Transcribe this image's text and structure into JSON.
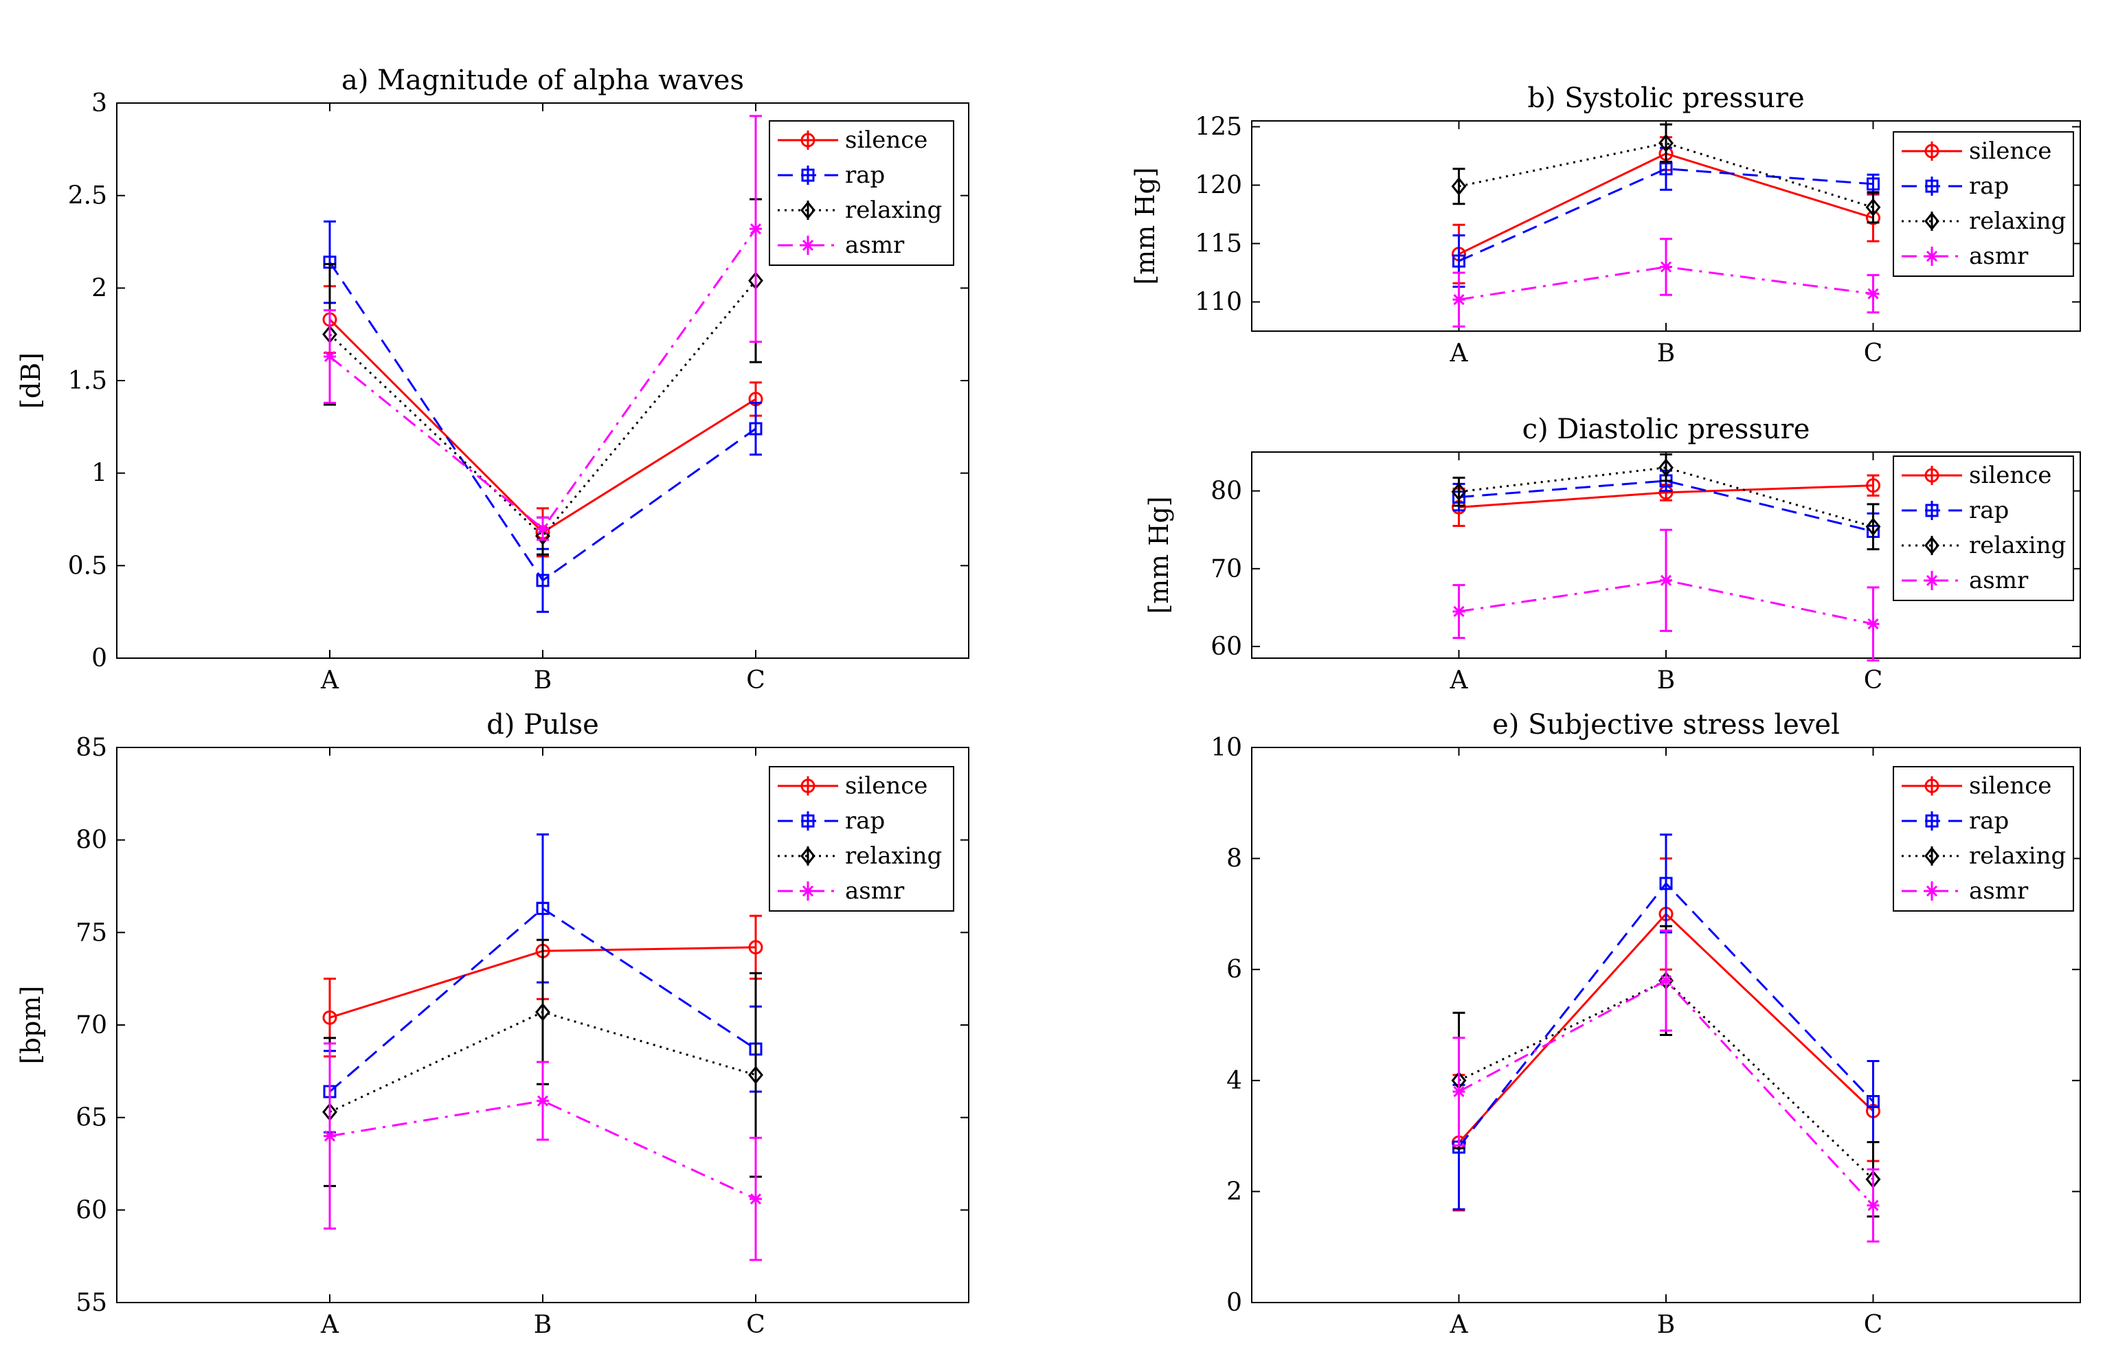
{
  "colors": {
    "silence": "#ff0000",
    "rap": "#0000ff",
    "relaxing": "#000000",
    "asmr": "#ff00ff"
  },
  "chart_data": [
    {
      "id": "alpha",
      "type": "line",
      "title": "a) Magnitude of alpha waves",
      "xlabel": "",
      "ylabel": "[dB]",
      "categories": [
        "A",
        "B",
        "C"
      ],
      "ylim": [
        0,
        3
      ],
      "yticks": [
        0,
        0.5,
        1,
        1.5,
        2,
        2.5,
        3
      ],
      "ytick_labels": [
        "0",
        "0.5",
        "1",
        "1.5",
        "2",
        "2.5",
        "3"
      ],
      "legend_position": "top-right",
      "series": [
        {
          "name": "silence",
          "values": [
            1.83,
            0.68,
            1.4
          ],
          "errors": [
            0.18,
            0.13,
            0.09
          ]
        },
        {
          "name": "rap",
          "values": [
            2.14,
            0.42,
            1.24
          ],
          "errors": [
            0.22,
            0.17,
            0.14
          ]
        },
        {
          "name": "relaxing",
          "values": [
            1.75,
            0.66,
            2.04
          ],
          "errors": [
            0.38,
            0.1,
            0.44
          ]
        },
        {
          "name": "asmr",
          "values": [
            1.63,
            0.7,
            2.32
          ],
          "errors": [
            0.25,
            0.06,
            0.61
          ]
        }
      ]
    },
    {
      "id": "systolic",
      "type": "line",
      "title": "b) Systolic pressure",
      "xlabel": "",
      "ylabel": "[mm Hg]",
      "categories": [
        "A",
        "B",
        "C"
      ],
      "ylim": [
        107.5,
        125.5
      ],
      "yticks": [
        110,
        115,
        120,
        125
      ],
      "ytick_labels": [
        "110",
        "115",
        "120",
        "125"
      ],
      "legend_position": "top-right",
      "series": [
        {
          "name": "silence",
          "values": [
            114.1,
            122.7,
            117.2
          ],
          "errors": [
            2.5,
            1.4,
            2.0
          ]
        },
        {
          "name": "rap",
          "values": [
            113.5,
            121.4,
            120.1
          ],
          "errors": [
            2.2,
            1.8,
            0.8
          ]
        },
        {
          "name": "relaxing",
          "values": [
            119.9,
            123.6,
            118.1
          ],
          "errors": [
            1.5,
            1.6,
            1.3
          ]
        },
        {
          "name": "asmr",
          "values": [
            110.2,
            113.0,
            110.7
          ],
          "errors": [
            2.3,
            2.4,
            1.6
          ]
        }
      ]
    },
    {
      "id": "diastolic",
      "type": "line",
      "title": "c) Diastolic pressure",
      "xlabel": "",
      "ylabel": "[mm Hg]",
      "categories": [
        "A",
        "B",
        "C"
      ],
      "ylim": [
        58.5,
        85
      ],
      "yticks": [
        60,
        70,
        80
      ],
      "ytick_labels": [
        "60",
        "70",
        "80"
      ],
      "legend_position": "top-right",
      "series": [
        {
          "name": "silence",
          "values": [
            77.9,
            79.8,
            80.7
          ],
          "errors": [
            2.4,
            1.0,
            1.3
          ]
        },
        {
          "name": "rap",
          "values": [
            79.2,
            81.3,
            74.8
          ],
          "errors": [
            1.7,
            1.3,
            2.3
          ]
        },
        {
          "name": "relaxing",
          "values": [
            79.9,
            83.0,
            75.4
          ],
          "errors": [
            1.8,
            1.7,
            2.9
          ]
        },
        {
          "name": "asmr",
          "values": [
            64.5,
            68.5,
            62.9
          ],
          "errors": [
            3.4,
            6.5,
            4.7
          ]
        }
      ]
    },
    {
      "id": "pulse",
      "type": "line",
      "title": "d) Pulse",
      "xlabel": "",
      "ylabel": "[bpm]",
      "categories": [
        "A",
        "B",
        "C"
      ],
      "ylim": [
        55,
        85
      ],
      "yticks": [
        55,
        60,
        65,
        70,
        75,
        80,
        85
      ],
      "ytick_labels": [
        "55",
        "60",
        "65",
        "70",
        "75",
        "80",
        "85"
      ],
      "legend_position": "top-right",
      "series": [
        {
          "name": "silence",
          "values": [
            70.4,
            74.0,
            74.2
          ],
          "errors": [
            2.1,
            2.6,
            1.7
          ]
        },
        {
          "name": "rap",
          "values": [
            66.4,
            76.3,
            68.7
          ],
          "errors": [
            2.2,
            4.0,
            2.3
          ]
        },
        {
          "name": "relaxing",
          "values": [
            65.3,
            70.7,
            67.3
          ],
          "errors": [
            4.0,
            3.9,
            5.5
          ]
        },
        {
          "name": "asmr",
          "values": [
            64.0,
            65.9,
            60.6
          ],
          "errors": [
            5.0,
            2.1,
            3.3
          ]
        }
      ]
    },
    {
      "id": "stress",
      "type": "line",
      "title": "e) Subjective stress level",
      "xlabel": "",
      "ylabel": "",
      "categories": [
        "A",
        "B",
        "C"
      ],
      "ylim": [
        0,
        10
      ],
      "yticks": [
        0,
        2,
        4,
        6,
        8,
        10
      ],
      "ytick_labels": [
        "0",
        "2",
        "4",
        "6",
        "8",
        "10"
      ],
      "legend_position": "top-right",
      "series": [
        {
          "name": "silence",
          "values": [
            2.88,
            7.0,
            3.45
          ],
          "errors": [
            1.22,
            1.0,
            0.9
          ]
        },
        {
          "name": "rap",
          "values": [
            2.8,
            7.55,
            3.62
          ],
          "errors": [
            1.12,
            0.88,
            0.73
          ]
        },
        {
          "name": "relaxing",
          "values": [
            4.0,
            5.8,
            2.22
          ],
          "errors": [
            1.22,
            0.98,
            0.67
          ]
        },
        {
          "name": "asmr",
          "values": [
            3.8,
            5.8,
            1.75
          ],
          "errors": [
            0.97,
            0.9,
            0.65
          ]
        }
      ]
    }
  ]
}
